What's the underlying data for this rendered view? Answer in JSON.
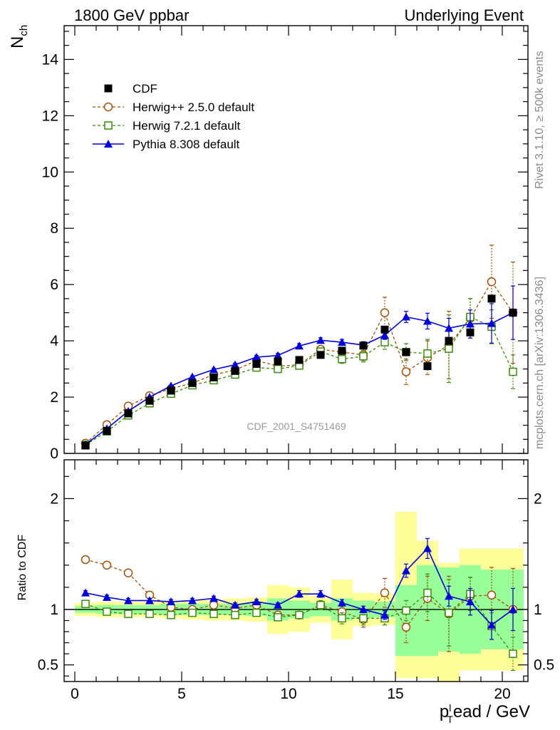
{
  "header": {
    "left": "1800 GeV ppbar",
    "right": "Underlying Event",
    "side_top": "Rivet 3.1.10, ≥ 500k events",
    "side_bottom": "mcplots.cern.ch [arXiv:1306.3436]",
    "watermark": "CDF_2001_S4751469"
  },
  "colors": {
    "data": "#000000",
    "herwigpp": "#a0520a",
    "herwig7": "#3a8a10",
    "pythia": "#0000dd",
    "band_yellow": "#ffff99",
    "band_green": "#99ff99"
  },
  "chart_data": [
    {
      "type": "line",
      "title": "Underlying Event",
      "ylabel": "N_ch",
      "xlabel": "p_T^lead / GeV",
      "xlim": [
        -0.5,
        21.2
      ],
      "ylim": [
        0,
        15.2
      ],
      "yticks": [
        0,
        2,
        4,
        6,
        8,
        10,
        12,
        14
      ],
      "x": [
        0.5,
        1.5,
        2.5,
        3.5,
        4.5,
        5.5,
        6.5,
        7.5,
        8.5,
        9.5,
        10.5,
        11.5,
        12.5,
        13.5,
        14.5,
        15.5,
        16.5,
        17.5,
        18.5,
        19.5,
        20.5
      ],
      "legend": [
        {
          "label": "CDF",
          "key": "cdf"
        },
        {
          "label": "Herwig++ 2.5.0 default",
          "key": "herwigpp"
        },
        {
          "label": "Herwig 7.2.1 default",
          "key": "herwig7"
        },
        {
          "label": "Pythia 8.308 default",
          "key": "pythia"
        }
      ],
      "series": [
        {
          "name": "CDF",
          "key": "cdf",
          "values": [
            0.28,
            0.8,
            1.42,
            1.87,
            2.23,
            2.5,
            2.7,
            2.93,
            3.18,
            3.27,
            3.32,
            3.5,
            3.65,
            3.83,
            4.4,
            3.6,
            3.1,
            4.0,
            4.3,
            5.5,
            5.0
          ]
        },
        {
          "name": "Herwig++ 2.5.0 default",
          "key": "herwigpp",
          "values": [
            0.36,
            1.02,
            1.68,
            2.05,
            2.3,
            2.5,
            2.8,
            2.96,
            3.3,
            3.1,
            3.15,
            3.7,
            3.6,
            3.5,
            5.0,
            2.9,
            3.4,
            3.85,
            4.8,
            6.1,
            5.0
          ],
          "errors": [
            0.02,
            0.02,
            0.03,
            0.03,
            0.03,
            0.04,
            0.04,
            0.05,
            0.06,
            0.07,
            0.08,
            0.1,
            0.15,
            0.2,
            0.55,
            0.45,
            0.6,
            1.2,
            0.7,
            1.3,
            1.8
          ]
        },
        {
          "name": "Herwig 7.2.1 default",
          "key": "herwig7",
          "values": [
            0.3,
            0.78,
            1.35,
            1.78,
            2.12,
            2.42,
            2.6,
            2.8,
            3.05,
            3.0,
            3.12,
            3.62,
            3.35,
            3.45,
            3.95,
            3.6,
            3.55,
            3.72,
            4.85,
            4.5,
            2.9
          ],
          "errors": [
            0.02,
            0.02,
            0.03,
            0.03,
            0.03,
            0.04,
            0.04,
            0.05,
            0.06,
            0.07,
            0.08,
            0.1,
            0.15,
            0.2,
            0.25,
            0.3,
            0.5,
            1.2,
            0.65,
            0.6,
            0.6
          ]
        },
        {
          "name": "Pythia 8.308 default",
          "key": "pythia",
          "values": [
            0.32,
            0.88,
            1.5,
            2.0,
            2.4,
            2.72,
            2.98,
            3.15,
            3.42,
            3.48,
            3.82,
            4.02,
            3.95,
            3.85,
            4.2,
            4.85,
            4.7,
            4.45,
            4.6,
            4.62,
            5.0
          ],
          "errors": [
            0.02,
            0.02,
            0.03,
            0.03,
            0.03,
            0.04,
            0.04,
            0.05,
            0.06,
            0.07,
            0.08,
            0.09,
            0.1,
            0.12,
            0.15,
            0.2,
            0.28,
            0.35,
            0.5,
            0.7,
            0.95
          ]
        }
      ]
    },
    {
      "type": "line",
      "ylabel": "Ratio to CDF",
      "xlabel": "p_T^lead / GeV",
      "xlim": [
        -0.5,
        21.2
      ],
      "ylim": [
        0.35,
        2.35
      ],
      "yticks": [
        0.5,
        1,
        2
      ],
      "xticks": [
        0,
        5,
        10,
        15,
        20
      ],
      "x": [
        0.5,
        1.5,
        2.5,
        3.5,
        4.5,
        5.5,
        6.5,
        7.5,
        8.5,
        9.5,
        10.5,
        11.5,
        12.5,
        13.5,
        14.5,
        15.5,
        16.5,
        17.5,
        18.5,
        19.5,
        20.5
      ],
      "bands": {
        "yellow": [
          [
            0.94,
            1.06
          ],
          [
            0.93,
            1.07
          ],
          [
            0.93,
            1.07
          ],
          [
            0.93,
            1.07
          ],
          [
            0.92,
            1.08
          ],
          [
            0.91,
            1.08
          ],
          [
            0.9,
            1.09
          ],
          [
            0.9,
            1.1
          ],
          [
            0.89,
            1.11
          ],
          [
            0.78,
            1.22
          ],
          [
            0.8,
            1.2
          ],
          [
            0.88,
            1.12
          ],
          [
            0.73,
            1.27
          ],
          [
            0.85,
            1.15
          ],
          [
            0.86,
            1.14
          ],
          [
            0.38,
            1.88
          ],
          [
            0.38,
            1.62
          ],
          [
            0.35,
            1.42
          ],
          [
            0.45,
            1.55
          ],
          [
            0.45,
            1.55
          ],
          [
            0.45,
            1.55
          ]
        ],
        "green": [
          [
            0.97,
            1.03
          ],
          [
            0.96,
            1.04
          ],
          [
            0.96,
            1.04
          ],
          [
            0.96,
            1.04
          ],
          [
            0.95,
            1.05
          ],
          [
            0.95,
            1.05
          ],
          [
            0.95,
            1.05
          ],
          [
            0.95,
            1.05
          ],
          [
            0.94,
            1.06
          ],
          [
            0.9,
            1.1
          ],
          [
            0.92,
            1.08
          ],
          [
            0.94,
            1.06
          ],
          [
            0.9,
            1.1
          ],
          [
            0.92,
            1.08
          ],
          [
            0.93,
            1.07
          ],
          [
            0.58,
            1.22
          ],
          [
            0.58,
            1.4
          ],
          [
            0.62,
            1.38
          ],
          [
            0.6,
            1.4
          ],
          [
            0.64,
            1.36
          ],
          [
            0.64,
            1.36
          ]
        ]
      },
      "series": [
        {
          "name": "Herwig++ 2.5.0 default",
          "key": "herwigpp",
          "values": [
            1.45,
            1.4,
            1.33,
            1.13,
            1.02,
            1.0,
            1.04,
            1.01,
            1.04,
            0.95,
            0.95,
            1.04,
            0.98,
            0.91,
            1.15,
            0.84,
            1.1,
            0.96,
            1.12,
            1.13,
            1.0
          ],
          "errors": [
            0.02,
            0.02,
            0.02,
            0.02,
            0.02,
            0.02,
            0.02,
            0.02,
            0.02,
            0.03,
            0.03,
            0.04,
            0.05,
            0.07,
            0.13,
            0.14,
            0.2,
            0.34,
            0.17,
            0.25,
            0.37
          ]
        },
        {
          "name": "Herwig 7.2.1 default",
          "key": "herwig7",
          "values": [
            1.05,
            0.98,
            0.96,
            0.96,
            0.95,
            0.97,
            0.96,
            0.95,
            0.97,
            0.93,
            0.95,
            1.04,
            0.92,
            0.92,
            0.92,
            0.99,
            1.15,
            0.97,
            1.14,
            0.85,
            0.6
          ],
          "errors": [
            0.02,
            0.02,
            0.02,
            0.02,
            0.02,
            0.02,
            0.02,
            0.02,
            0.02,
            0.03,
            0.03,
            0.04,
            0.05,
            0.06,
            0.06,
            0.09,
            0.17,
            0.3,
            0.15,
            0.12,
            0.15
          ]
        },
        {
          "name": "Pythia 8.308 default",
          "key": "pythia",
          "values": [
            1.15,
            1.11,
            1.08,
            1.08,
            1.07,
            1.08,
            1.1,
            1.04,
            1.07,
            1.04,
            1.14,
            1.14,
            1.06,
            1.0,
            0.95,
            1.35,
            1.55,
            1.12,
            1.07,
            0.86,
            1.0
          ],
          "errors": [
            0.02,
            0.02,
            0.02,
            0.02,
            0.02,
            0.02,
            0.02,
            0.02,
            0.02,
            0.02,
            0.03,
            0.03,
            0.03,
            0.03,
            0.04,
            0.06,
            0.09,
            0.09,
            0.12,
            0.13,
            0.19
          ]
        }
      ]
    }
  ]
}
